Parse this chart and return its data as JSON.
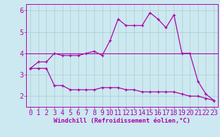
{
  "xlabel": "Windchill (Refroidissement éolien,°C)",
  "x_values": [
    0,
    1,
    2,
    3,
    4,
    5,
    6,
    7,
    8,
    9,
    10,
    11,
    12,
    13,
    14,
    15,
    16,
    17,
    18,
    19,
    20,
    21,
    22,
    23
  ],
  "line1_y": [
    3.3,
    3.6,
    3.6,
    4.0,
    3.9,
    3.9,
    3.9,
    4.0,
    4.1,
    3.9,
    4.6,
    5.6,
    5.3,
    5.3,
    5.3,
    5.9,
    5.6,
    5.2,
    5.8,
    4.0,
    4.0,
    2.7,
    2.1,
    1.8
  ],
  "line2_y": [
    3.3,
    3.3,
    3.3,
    2.5,
    2.5,
    2.3,
    2.3,
    2.3,
    2.3,
    2.4,
    2.4,
    2.4,
    2.3,
    2.3,
    2.2,
    2.2,
    2.2,
    2.2,
    2.2,
    2.1,
    2.0,
    2.0,
    1.9,
    1.8
  ],
  "hline_y": 4.0,
  "line_color": "#aa00aa",
  "bg_color": "#cce8f0",
  "grid_color": "#aacccc",
  "label_color": "#aa00aa",
  "ylim": [
    1.5,
    6.3
  ],
  "yticks": [
    2,
    3,
    4,
    5,
    6
  ],
  "tick_fontsize": 7,
  "xlabel_fontsize": 6.5
}
